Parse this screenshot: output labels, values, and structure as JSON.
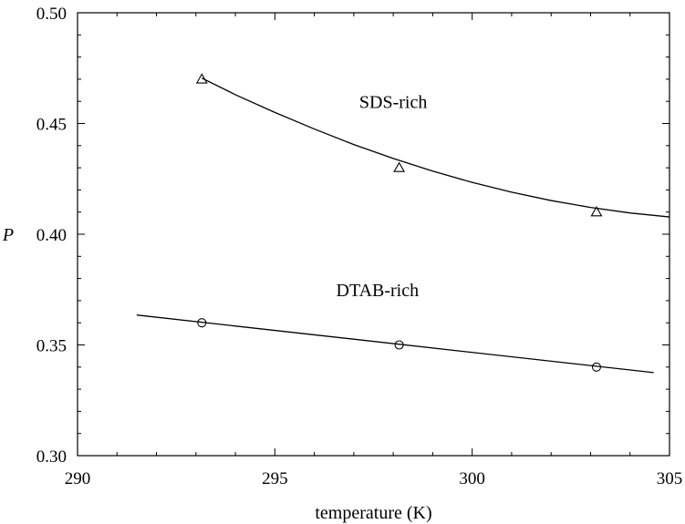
{
  "chart_data": {
    "type": "scatter",
    "title": "",
    "xlabel": "temperature (K)",
    "ylabel": "P",
    "xlim": [
      290,
      305
    ],
    "ylim": [
      0.3,
      0.5
    ],
    "x_ticks": [
      290,
      295,
      300,
      305
    ],
    "x_tick_labels": [
      "290",
      "295",
      "300",
      "305"
    ],
    "y_ticks": [
      0.3,
      0.35,
      0.4,
      0.45,
      0.5
    ],
    "y_tick_labels": [
      "0.30",
      "0.35",
      "0.40",
      "0.45",
      "0.50"
    ],
    "grid": false,
    "series": [
      {
        "name": "SDS-rich",
        "marker": "triangle",
        "x": [
          293.15,
          298.15,
          303.15
        ],
        "y": [
          0.47,
          0.43,
          0.41
        ],
        "fit_curve": {
          "x": [
            293.15,
            294,
            295,
            296,
            297,
            298,
            299,
            300,
            301,
            302,
            303,
            304,
            305
          ],
          "y": [
            0.4705,
            0.463,
            0.455,
            0.4475,
            0.4405,
            0.4342,
            0.4285,
            0.4234,
            0.419,
            0.4152,
            0.4121,
            0.4096,
            0.4078
          ]
        }
      },
      {
        "name": "DTAB-rich",
        "marker": "circle",
        "x": [
          293.15,
          298.15,
          303.15
        ],
        "y": [
          0.36,
          0.35,
          0.34
        ],
        "fit_line": {
          "x": [
            291.5,
            304.6
          ],
          "y": [
            0.3635,
            0.3375
          ]
        }
      }
    ],
    "annotations": [
      {
        "text": "SDS-rich",
        "x": 298.0,
        "y": 0.457
      },
      {
        "text": "DTAB-rich",
        "x": 297.6,
        "y": 0.372
      }
    ]
  }
}
